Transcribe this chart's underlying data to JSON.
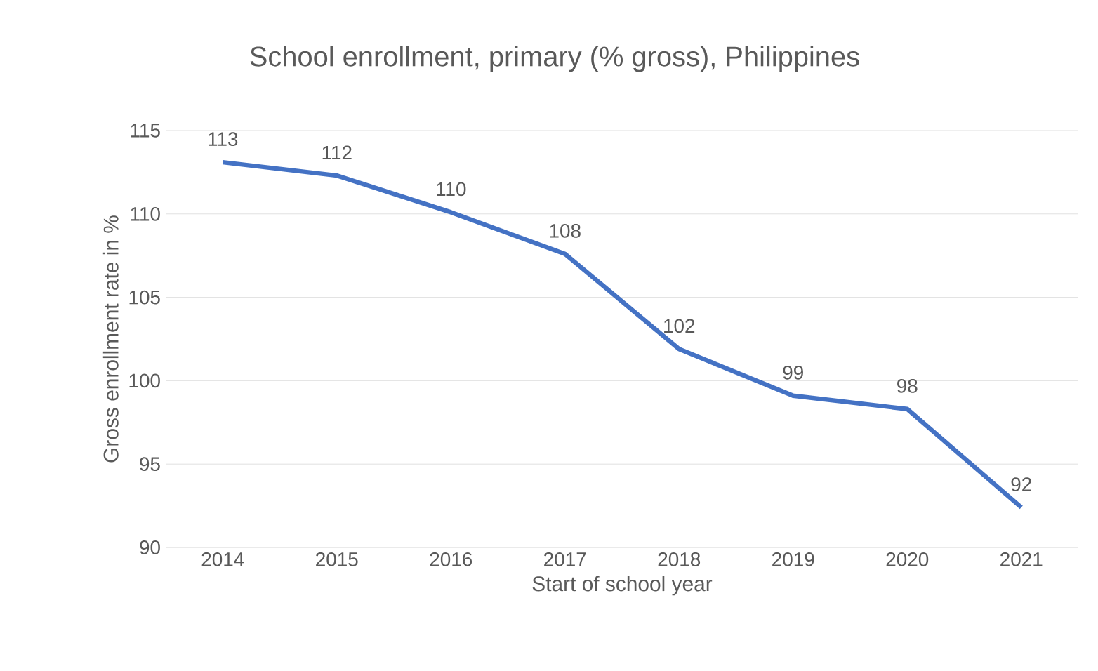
{
  "chart_data": {
    "type": "line",
    "title": "School enrollment, primary (% gross), Philippines",
    "xlabel": "Start of school year",
    "ylabel": "Gross enrollment rate in %",
    "categories": [
      "2014",
      "2015",
      "2016",
      "2017",
      "2018",
      "2019",
      "2020",
      "2021"
    ],
    "values": [
      113.1,
      112.3,
      110.1,
      107.6,
      101.9,
      99.1,
      98.3,
      92.4
    ],
    "value_labels": [
      "113",
      "112",
      "110",
      "108",
      "102",
      "99",
      "98",
      "92"
    ],
    "color": "#4472c4",
    "ylim": [
      90,
      115
    ],
    "yticks": [
      90,
      95,
      100,
      105,
      110,
      115
    ],
    "grid": "y"
  }
}
